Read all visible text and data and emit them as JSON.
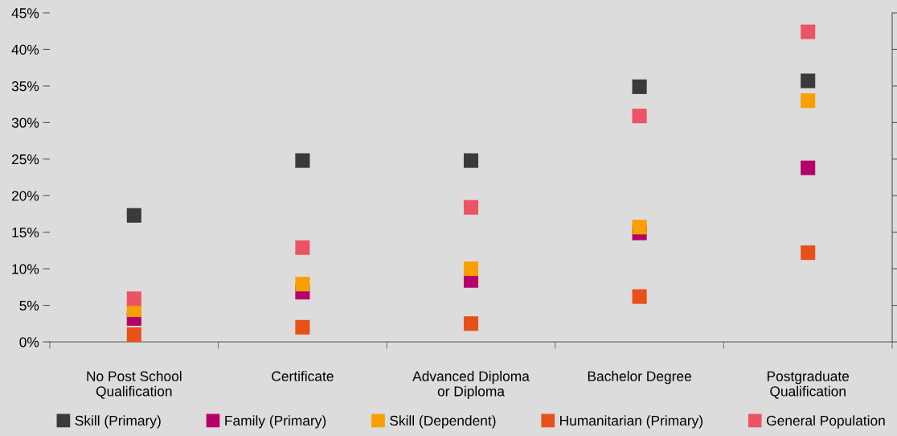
{
  "chart_data": {
    "type": "scatter",
    "categories": [
      "No Post School\nQualification",
      "Certificate",
      "Advanced Diploma\nor Diploma",
      "Bachelor Degree",
      "Postgraduate\nQualification"
    ],
    "series": [
      {
        "name": "Skill (Primary)",
        "color": "#3a3a3a",
        "values": [
          17.3,
          24.8,
          24.8,
          34.9,
          35.7
        ]
      },
      {
        "name": "Family (Primary)",
        "color": "#b5006b",
        "values": [
          3.2,
          6.8,
          8.4,
          14.9,
          23.8
        ]
      },
      {
        "name": "Skill (Dependent)",
        "color": "#f7a000",
        "values": [
          4.4,
          7.9,
          10.0,
          15.7,
          33.0
        ]
      },
      {
        "name": "Humanitarian (Primary)",
        "color": "#e8501a",
        "values": [
          1.0,
          2.0,
          2.5,
          6.2,
          12.2
        ]
      },
      {
        "name": "General Population",
        "color": "#ec5466",
        "values": [
          5.9,
          12.9,
          18.4,
          30.9,
          42.4
        ]
      }
    ],
    "ylim": [
      0,
      45
    ],
    "yticks": [
      {
        "value": 0,
        "label": "0%"
      },
      {
        "value": 5,
        "label": "5%"
      },
      {
        "value": 10,
        "label": "10%"
      },
      {
        "value": 15,
        "label": "15%"
      },
      {
        "value": 20,
        "label": "20%"
      },
      {
        "value": 25,
        "label": "25%"
      },
      {
        "value": 30,
        "label": "30%"
      },
      {
        "value": 35,
        "label": "35%"
      },
      {
        "value": 40,
        "label": "40%"
      },
      {
        "value": 45,
        "label": "45%"
      }
    ],
    "marker": "square",
    "grid": false,
    "legend": "bottom"
  }
}
